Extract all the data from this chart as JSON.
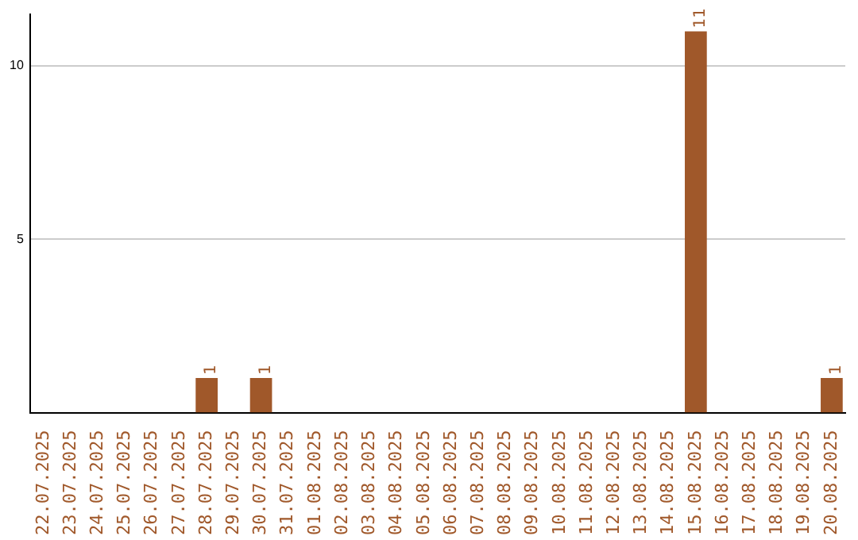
{
  "chart_data": {
    "type": "bar",
    "categories": [
      "22.07.2025",
      "23.07.2025",
      "24.07.2025",
      "25.07.2025",
      "26.07.2025",
      "27.07.2025",
      "28.07.2025",
      "29.07.2025",
      "30.07.2025",
      "31.07.2025",
      "01.08.2025",
      "02.08.2025",
      "03.08.2025",
      "04.08.2025",
      "05.08.2025",
      "06.08.2025",
      "07.08.2025",
      "08.08.2025",
      "09.08.2025",
      "10.08.2025",
      "11.08.2025",
      "12.08.2025",
      "13.08.2025",
      "14.08.2025",
      "15.08.2025",
      "16.08.2025",
      "17.08.2025",
      "18.08.2025",
      "19.08.2025",
      "20.08.2025"
    ],
    "values": [
      0,
      0,
      0,
      0,
      0,
      0,
      1,
      0,
      1,
      0,
      0,
      0,
      0,
      0,
      0,
      0,
      0,
      0,
      0,
      0,
      0,
      0,
      0,
      0,
      11,
      0,
      0,
      0,
      0,
      1
    ],
    "value_labels": [
      null,
      null,
      null,
      null,
      null,
      null,
      "1",
      null,
      "1",
      null,
      null,
      null,
      null,
      null,
      null,
      null,
      null,
      null,
      null,
      null,
      null,
      null,
      null,
      null,
      "11",
      null,
      null,
      null,
      null,
      "1"
    ],
    "color": "#a0582a",
    "ylim": [
      0,
      11.5
    ],
    "yticks": [
      5,
      10
    ],
    "grid": "y",
    "legend": false
  }
}
